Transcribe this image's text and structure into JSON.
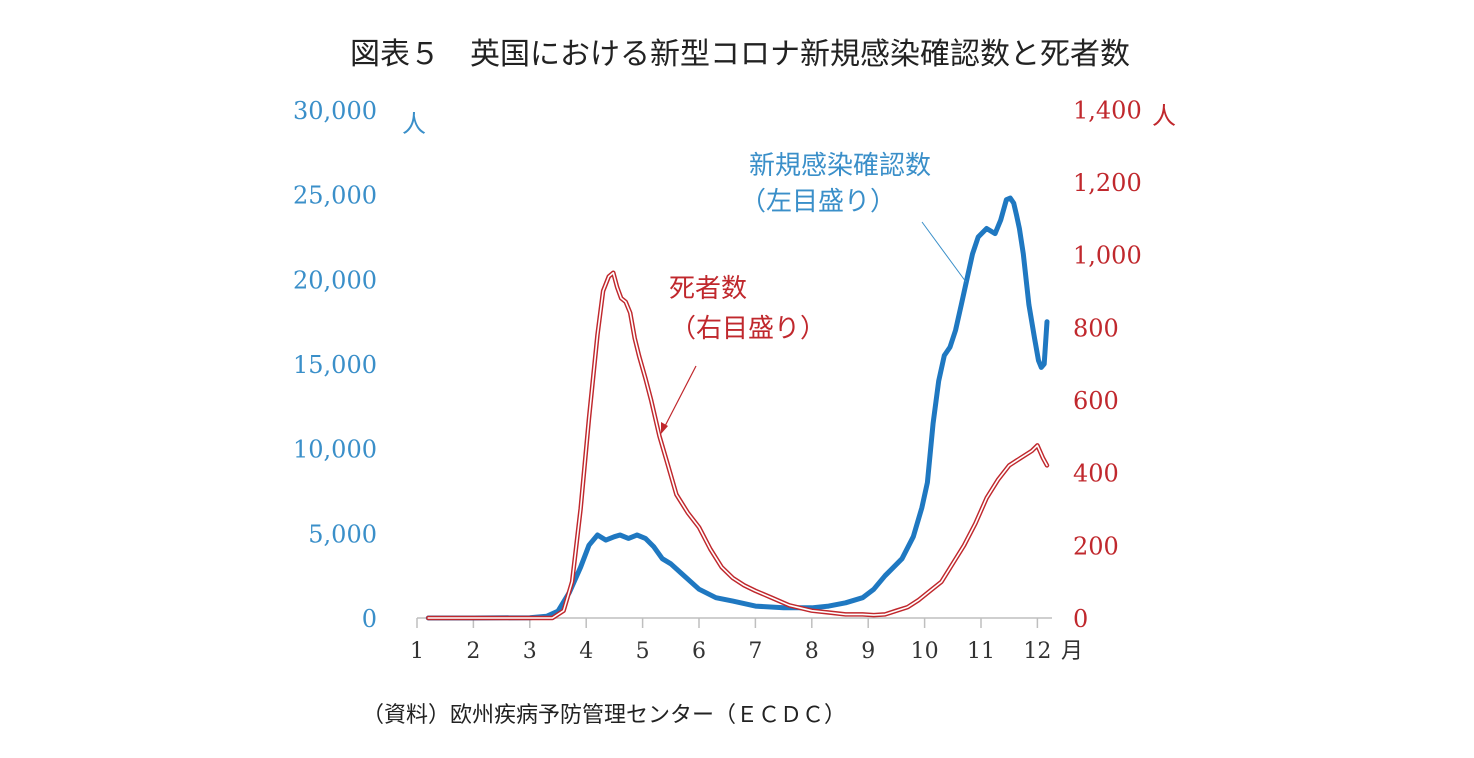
{
  "colors": {
    "cases": "#1f78c1",
    "deaths": "#c0282d",
    "left_axis": "#3a8fc9",
    "right_axis": "#c0282d",
    "axis_line": "#bfbfbf"
  },
  "chart_data": {
    "type": "line",
    "title": "図表５　英国における新型コロナ新規感染確認数と死者数",
    "source": "（資料）欧州疾病予防管理センター（ＥＣＤＣ）",
    "x_unit": "月",
    "x_ticks": [
      "1",
      "2",
      "3",
      "4",
      "5",
      "6",
      "7",
      "8",
      "9",
      "10",
      "11",
      "12"
    ],
    "xlim": [
      1,
      12.2
    ],
    "left_axis": {
      "unit": "人",
      "ylim": [
        0,
        30000
      ],
      "ticks": [
        "0",
        "5,000",
        "10,000",
        "15,000",
        "20,000",
        "25,000",
        "30,000"
      ],
      "tick_values": [
        0,
        5000,
        10000,
        15000,
        20000,
        25000,
        30000
      ]
    },
    "right_axis": {
      "unit": "人",
      "ylim": [
        0,
        1500
      ],
      "ticks": [
        "0",
        "200",
        "400",
        "600",
        "800",
        "1,000",
        "1,200",
        "1,400"
      ],
      "tick_values": [
        0,
        200,
        400,
        600,
        800,
        1000,
        1200,
        1400
      ]
    },
    "annotations": [
      {
        "series": "cases",
        "lines": [
          "新規感染確認数",
          "（左目盛り）"
        ]
      },
      {
        "series": "deaths",
        "lines": [
          "死者数",
          "（右目盛り）"
        ]
      }
    ],
    "series": [
      {
        "key": "cases",
        "axis": "left",
        "x": [
          1.2,
          2,
          3,
          3.3,
          3.5,
          3.7,
          3.9,
          4.05,
          4.2,
          4.35,
          4.5,
          4.6,
          4.75,
          4.9,
          5.05,
          5.2,
          5.35,
          5.5,
          5.7,
          6,
          6.3,
          6.6,
          7,
          7.5,
          8,
          8.3,
          8.6,
          8.9,
          9.1,
          9.3,
          9.6,
          9.8,
          9.95,
          10.05,
          10.15,
          10.25,
          10.35,
          10.45,
          10.55,
          10.65,
          10.75,
          10.85,
          10.95,
          11.1,
          11.25,
          11.35,
          11.45,
          11.52,
          11.58,
          11.63,
          11.68,
          11.75,
          11.85,
          11.95,
          12.02,
          12.07,
          12.12,
          12.17
        ],
        "y": [
          0,
          0,
          20,
          100,
          400,
          1500,
          3000,
          4300,
          4900,
          4600,
          4800,
          4900,
          4700,
          4900,
          4700,
          4200,
          3500,
          3200,
          2600,
          1700,
          1200,
          1000,
          700,
          600,
          600,
          700,
          900,
          1200,
          1700,
          2500,
          3500,
          4800,
          6500,
          8000,
          11500,
          14000,
          15500,
          16000,
          17000,
          18500,
          20000,
          21500,
          22500,
          23000,
          22700,
          23500,
          24700,
          24800,
          24500,
          23800,
          23000,
          21500,
          18500,
          16500,
          15200,
          14800,
          15000,
          17500
        ]
      },
      {
        "key": "deaths",
        "axis": "right",
        "x": [
          1.2,
          2,
          3,
          3.4,
          3.6,
          3.75,
          3.9,
          4.05,
          4.2,
          4.3,
          4.4,
          4.48,
          4.55,
          4.62,
          4.7,
          4.78,
          4.86,
          4.94,
          5.05,
          5.15,
          5.3,
          5.45,
          5.6,
          5.8,
          6,
          6.2,
          6.4,
          6.6,
          6.8,
          7,
          7.3,
          7.6,
          8,
          8.3,
          8.6,
          8.9,
          9.1,
          9.3,
          9.5,
          9.7,
          9.9,
          10.1,
          10.3,
          10.5,
          10.7,
          10.9,
          11.1,
          11.3,
          11.5,
          11.7,
          11.9,
          12,
          12.1,
          12.17
        ],
        "y": [
          0,
          0,
          0,
          0,
          20,
          100,
          300,
          550,
          780,
          900,
          940,
          950,
          910,
          880,
          870,
          840,
          770,
          720,
          660,
          600,
          500,
          420,
          340,
          290,
          250,
          190,
          140,
          110,
          90,
          75,
          55,
          35,
          20,
          15,
          10,
          10,
          8,
          10,
          20,
          30,
          50,
          75,
          100,
          150,
          200,
          260,
          330,
          380,
          420,
          440,
          460,
          475,
          440,
          420
        ]
      }
    ]
  }
}
